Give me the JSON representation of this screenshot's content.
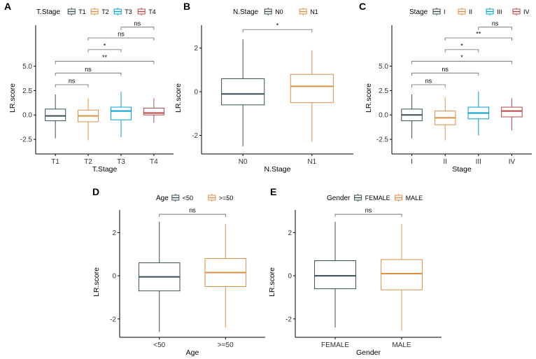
{
  "colors": {
    "group1": "#374E55",
    "group2": "#DF8F44",
    "group3": "#00A1D5",
    "group4": "#B24745",
    "axis": "#000000",
    "bracket": "#666666"
  },
  "chart_data": [
    {
      "panel": "A",
      "type": "box",
      "legend_title": "T.Stage",
      "categories": [
        "T1",
        "T2",
        "T3",
        "T4"
      ],
      "xlabel": "T.Stage",
      "ylabel": "LR.score",
      "ylim": [
        -4.0,
        9.2
      ],
      "yticks": [
        -2.5,
        0.0,
        2.5,
        5.0
      ],
      "ytick_labels": [
        "-2.5",
        "0.0",
        "2.5",
        "5.0"
      ],
      "boxes": [
        {
          "category": "T1",
          "min": -2.4,
          "q1": -0.6,
          "median": -0.1,
          "q3": 0.6,
          "max": 2.1
        },
        {
          "category": "T2",
          "min": -2.6,
          "q1": -0.7,
          "median": -0.1,
          "q3": 0.5,
          "max": 1.7
        },
        {
          "category": "T3",
          "min": -2.3,
          "q1": -0.5,
          "median": 0.4,
          "q3": 0.8,
          "max": 2.4
        },
        {
          "category": "T4",
          "min": -0.8,
          "q1": 0.0,
          "median": 0.2,
          "q3": 0.7,
          "max": 1.7
        }
      ],
      "comparisons": [
        {
          "groups": [
            "T1",
            "T2"
          ],
          "y": 3.1,
          "label": "ns"
        },
        {
          "groups": [
            "T1",
            "T3"
          ],
          "y": 4.3,
          "label": "ns"
        },
        {
          "groups": [
            "T1",
            "T4"
          ],
          "y": 5.5,
          "label": "**"
        },
        {
          "groups": [
            "T2",
            "T3"
          ],
          "y": 6.7,
          "label": "*"
        },
        {
          "groups": [
            "T2",
            "T4"
          ],
          "y": 7.9,
          "label": "ns"
        },
        {
          "groups": [
            "T3",
            "T4"
          ],
          "y": 9.0,
          "label": "ns"
        }
      ]
    },
    {
      "panel": "B",
      "type": "box",
      "legend_title": "N.Stage",
      "categories": [
        "N0",
        "N1"
      ],
      "xlabel": "N.Stage",
      "ylabel": "LR.score",
      "ylim": [
        -2.85,
        3.05
      ],
      "yticks": [
        -2,
        0,
        2
      ],
      "ytick_labels": [
        "-2",
        "0",
        "2"
      ],
      "boxes": [
        {
          "category": "N0",
          "min": -2.5,
          "q1": -0.6,
          "median": -0.1,
          "q3": 0.6,
          "max": 2.4
        },
        {
          "category": "N1",
          "min": -2.3,
          "q1": -0.5,
          "median": 0.25,
          "q3": 0.8,
          "max": 1.9
        }
      ],
      "comparisons": [
        {
          "groups": [
            "N0",
            "N1"
          ],
          "y": 2.85,
          "label": "*"
        }
      ]
    },
    {
      "panel": "C",
      "type": "box",
      "legend_title": "Stage",
      "categories": [
        "I",
        "II",
        "III",
        "IV"
      ],
      "xlabel": "Stage",
      "ylabel": "LR.score",
      "ylim": [
        -4.0,
        9.2
      ],
      "yticks": [
        -2.5,
        0.0,
        2.5,
        5.0
      ],
      "ytick_labels": [
        "-2.5",
        "0.0",
        "2.5",
        "5.0"
      ],
      "boxes": [
        {
          "category": "I",
          "min": -2.4,
          "q1": -0.6,
          "median": 0.0,
          "q3": 0.6,
          "max": 2.1
        },
        {
          "category": "II",
          "min": -2.6,
          "q1": -1.0,
          "median": -0.3,
          "q3": 0.4,
          "max": 1.8
        },
        {
          "category": "III",
          "min": -2.1,
          "q1": -0.4,
          "median": 0.2,
          "q3": 0.8,
          "max": 2.4
        },
        {
          "category": "IV",
          "min": -1.6,
          "q1": -0.2,
          "median": 0.4,
          "q3": 0.8,
          "max": 1.7
        }
      ],
      "comparisons": [
        {
          "groups": [
            "I",
            "II"
          ],
          "y": 3.1,
          "label": "ns"
        },
        {
          "groups": [
            "I",
            "III"
          ],
          "y": 4.3,
          "label": "ns"
        },
        {
          "groups": [
            "I",
            "IV"
          ],
          "y": 5.5,
          "label": "*"
        },
        {
          "groups": [
            "II",
            "III"
          ],
          "y": 6.7,
          "label": "*"
        },
        {
          "groups": [
            "II",
            "IV"
          ],
          "y": 7.9,
          "label": "**"
        },
        {
          "groups": [
            "III",
            "IV"
          ],
          "y": 9.0,
          "label": "ns"
        }
      ]
    },
    {
      "panel": "D",
      "type": "box",
      "legend_title": "Age",
      "categories": [
        "<50",
        ">=50"
      ],
      "xlabel": "Age",
      "ylabel": "LR.score",
      "ylim": [
        -2.85,
        3.05
      ],
      "yticks": [
        -2,
        0,
        2
      ],
      "ytick_labels": [
        "-2",
        "0",
        "2"
      ],
      "boxes": [
        {
          "category": "<50",
          "min": -2.6,
          "q1": -0.7,
          "median": -0.05,
          "q3": 0.6,
          "max": 2.5
        },
        {
          "category": ">=50",
          "min": -2.4,
          "q1": -0.5,
          "median": 0.15,
          "q3": 0.8,
          "max": 2.4
        }
      ],
      "comparisons": [
        {
          "groups": [
            "<50",
            ">=50"
          ],
          "y": 2.85,
          "label": "ns"
        }
      ]
    },
    {
      "panel": "E",
      "type": "box",
      "legend_title": "Gender",
      "categories": [
        "FEMALE",
        "MALE"
      ],
      "xlabel": "Gender",
      "ylabel": "LR.score",
      "ylim": [
        -2.85,
        3.05
      ],
      "yticks": [
        -2,
        0,
        2
      ],
      "ytick_labels": [
        "-2",
        "0",
        "2"
      ],
      "boxes": [
        {
          "category": "FEMALE",
          "min": -2.4,
          "q1": -0.6,
          "median": 0.0,
          "q3": 0.7,
          "max": 2.5
        },
        {
          "category": "MALE",
          "min": -2.55,
          "q1": -0.65,
          "median": 0.1,
          "q3": 0.75,
          "max": 2.4
        }
      ],
      "comparisons": [
        {
          "groups": [
            "FEMALE",
            "MALE"
          ],
          "y": 2.85,
          "label": "ns"
        }
      ]
    }
  ]
}
